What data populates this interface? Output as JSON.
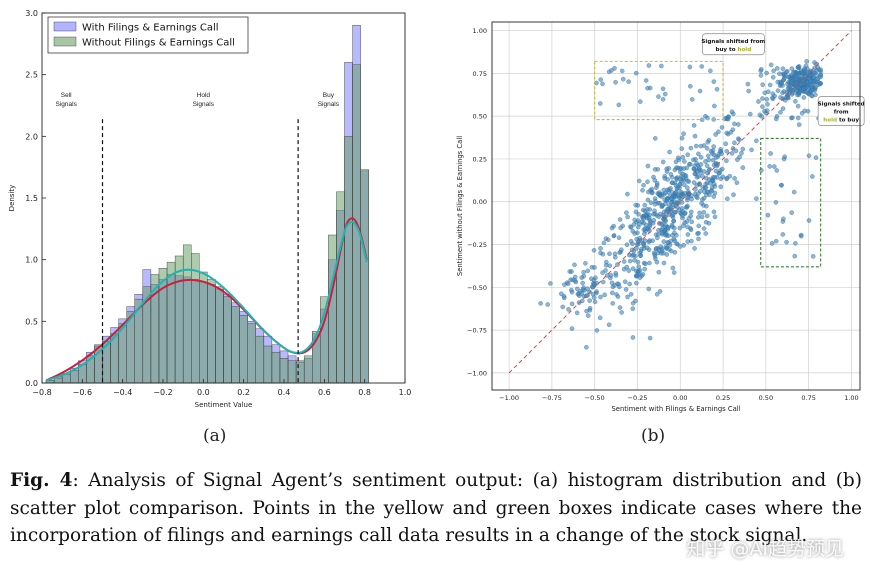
{
  "figure": {
    "label_a": "(a)",
    "label_b": "(b)",
    "caption_label": "Fig. 4",
    "caption_text": ": Analysis of Signal Agent’s sentiment output: (a) histogram distribution and (b) scatter plot comparison. Points in the yellow and green boxes indicate cases where the incorporation of filings and earnings call data results in a change of the stock signal.",
    "watermark": "知乎 @AI趋势预见"
  },
  "chart_data": [
    {
      "type": "bar",
      "subtype": "histogram",
      "xlabel": "Sentiment Value",
      "ylabel": "Density",
      "xlim": [
        -0.8,
        1.0
      ],
      "ylim": [
        0,
        3.0
      ],
      "xticks": [
        -0.8,
        -0.6,
        -0.4,
        -0.2,
        0.0,
        0.2,
        0.4,
        0.6,
        0.8,
        1.0
      ],
      "yticks": [
        0.0,
        0.5,
        1.0,
        1.5,
        2.0,
        2.5,
        3.0
      ],
      "tick_labels_x": [
        "−0.8",
        "−0.6",
        "−0.4",
        "−0.2",
        "0.0",
        "0.2",
        "0.4",
        "0.6",
        "0.8",
        "1.0"
      ],
      "tick_labels_y": [
        "0.0",
        "0.5",
        "1.0",
        "1.5",
        "2.0",
        "2.5",
        "3.0"
      ],
      "legend_position": "top-left",
      "bin_edges": [
        -0.78,
        -0.74,
        -0.7,
        -0.66,
        -0.62,
        -0.58,
        -0.54,
        -0.5,
        -0.46,
        -0.42,
        -0.38,
        -0.34,
        -0.3,
        -0.26,
        -0.22,
        -0.18,
        -0.14,
        -0.1,
        -0.06,
        -0.02,
        0.02,
        0.06,
        0.1,
        0.14,
        0.18,
        0.22,
        0.26,
        0.3,
        0.34,
        0.38,
        0.42,
        0.46,
        0.5,
        0.54,
        0.58,
        0.62,
        0.66,
        0.7,
        0.74,
        0.78,
        0.82
      ],
      "series": [
        {
          "name": "With Filings & Earnings Call",
          "color": "#8080ff",
          "values": [
            0.02,
            0.05,
            0.08,
            0.12,
            0.18,
            0.25,
            0.31,
            0.38,
            0.45,
            0.52,
            0.62,
            0.72,
            0.92,
            0.8,
            0.84,
            0.88,
            0.87,
            0.86,
            0.84,
            0.82,
            0.8,
            0.76,
            0.72,
            0.65,
            0.58,
            0.5,
            0.44,
            0.38,
            0.31,
            0.26,
            0.22,
            0.18,
            0.2,
            0.4,
            0.6,
            1.0,
            1.4,
            2.6,
            2.9,
            1.72
          ]
        },
        {
          "name": "Without Filings & Earnings Call",
          "color": "#6aa06a",
          "values": [
            0.02,
            0.04,
            0.07,
            0.1,
            0.15,
            0.22,
            0.3,
            0.34,
            0.4,
            0.48,
            0.58,
            0.68,
            0.78,
            0.88,
            0.93,
            0.98,
            1.03,
            1.12,
            1.05,
            0.9,
            0.84,
            0.78,
            0.7,
            0.62,
            0.55,
            0.48,
            0.38,
            0.3,
            0.25,
            0.2,
            0.18,
            0.17,
            0.22,
            0.42,
            0.7,
            1.2,
            1.55,
            2.0,
            2.58,
            1.73
          ]
        }
      ],
      "kde": [
        {
          "name": "With Filings & Earnings Call",
          "color": "#cc1f3d",
          "x": [
            -0.78,
            -0.7,
            -0.6,
            -0.5,
            -0.4,
            -0.3,
            -0.2,
            -0.1,
            0.0,
            0.1,
            0.2,
            0.3,
            0.4,
            0.45,
            0.5,
            0.55,
            0.6,
            0.65,
            0.7,
            0.72,
            0.75,
            0.78,
            0.81
          ],
          "y": [
            0.02,
            0.08,
            0.18,
            0.31,
            0.47,
            0.64,
            0.78,
            0.84,
            0.83,
            0.75,
            0.6,
            0.42,
            0.28,
            0.24,
            0.24,
            0.31,
            0.48,
            0.82,
            1.24,
            1.33,
            1.34,
            1.22,
            1.0
          ]
        },
        {
          "name": "Without Filings & Earnings Call",
          "color": "#23b2b2",
          "x": [
            -0.78,
            -0.7,
            -0.6,
            -0.5,
            -0.4,
            -0.3,
            -0.2,
            -0.1,
            0.0,
            0.1,
            0.2,
            0.3,
            0.4,
            0.45,
            0.5,
            0.55,
            0.6,
            0.65,
            0.7,
            0.72,
            0.75,
            0.78,
            0.81
          ],
          "y": [
            0.02,
            0.06,
            0.14,
            0.27,
            0.44,
            0.65,
            0.84,
            0.93,
            0.9,
            0.78,
            0.61,
            0.42,
            0.28,
            0.24,
            0.25,
            0.34,
            0.55,
            0.9,
            1.24,
            1.3,
            1.31,
            1.2,
            0.98
          ]
        }
      ],
      "reference_lines_x": [
        -0.5,
        0.47
      ],
      "annotations": [
        {
          "text": [
            "Sell",
            "Signals"
          ],
          "x": -0.68,
          "y": 2.32
        },
        {
          "text": [
            "Hold",
            "Signals"
          ],
          "x": 0.0,
          "y": 2.32
        },
        {
          "text": [
            "Buy",
            "Signals"
          ],
          "x": 0.62,
          "y": 2.32
        }
      ]
    },
    {
      "type": "scatter",
      "xlabel": "Sentiment with Filings & Earnings Call",
      "ylabel": "Sentiment without Filings & Earnings Call",
      "xlim": [
        -1.1,
        1.05
      ],
      "ylim": [
        -1.1,
        1.05
      ],
      "xticks": [
        -1.0,
        -0.75,
        -0.5,
        -0.25,
        0.0,
        0.25,
        0.5,
        0.75,
        1.0
      ],
      "yticks": [
        -1.0,
        -0.75,
        -0.5,
        -0.25,
        0.0,
        0.25,
        0.5,
        0.75,
        1.0
      ],
      "tick_labels": [
        "−1.00",
        "−0.75",
        "−0.50",
        "−0.25",
        "0.00",
        "0.25",
        "0.50",
        "0.75",
        "1.00"
      ],
      "grid": true,
      "point_color": "#3f84bb",
      "diagonal": {
        "from": [
          -1.0,
          -1.0
        ],
        "to": [
          1.0,
          1.0
        ],
        "color": "#d44"
      },
      "boxes": [
        {
          "name": "buy-to-hold",
          "x": [
            -0.5,
            0.25
          ],
          "y": [
            0.48,
            0.82
          ],
          "color": "#c9b93a"
        },
        {
          "name": "hold-to-buy",
          "x": [
            0.47,
            0.82
          ],
          "y": [
            -0.38,
            0.37
          ],
          "color": "#3a7f3a"
        }
      ],
      "callouts": [
        {
          "lines": [
            "Signals shifted from",
            "buy to hold"
          ],
          "highlight": "hold",
          "highlight_color": "#a6b12a",
          "x": 0.31,
          "y": 0.92
        },
        {
          "lines": [
            "Signals shifted",
            "from",
            "hold to buy"
          ],
          "highlight": "hold",
          "highlight_color": "#a6b12a",
          "x": 0.94,
          "y": 0.53
        }
      ],
      "clusters": [
        {
          "cx": -0.05,
          "cy": -0.05,
          "sx": 0.22,
          "sy": 0.26,
          "n": 620,
          "rho": 0.8
        },
        {
          "cx": 0.7,
          "cy": 0.7,
          "sx": 0.06,
          "sy": 0.05,
          "n": 230,
          "rho": 0.2
        },
        {
          "cx": -0.55,
          "cy": -0.5,
          "sx": 0.1,
          "sy": 0.1,
          "n": 60,
          "rho": 0.5
        },
        {
          "xr": [
            -0.5,
            0.25
          ],
          "yr": [
            0.55,
            0.8
          ],
          "n": 32
        },
        {
          "xr": [
            0.5,
            0.8
          ],
          "yr": [
            -0.35,
            0.3
          ],
          "n": 26
        },
        {
          "xr": [
            0.45,
            0.85
          ],
          "yr": [
            0.45,
            0.82
          ],
          "n": 55
        }
      ]
    }
  ]
}
